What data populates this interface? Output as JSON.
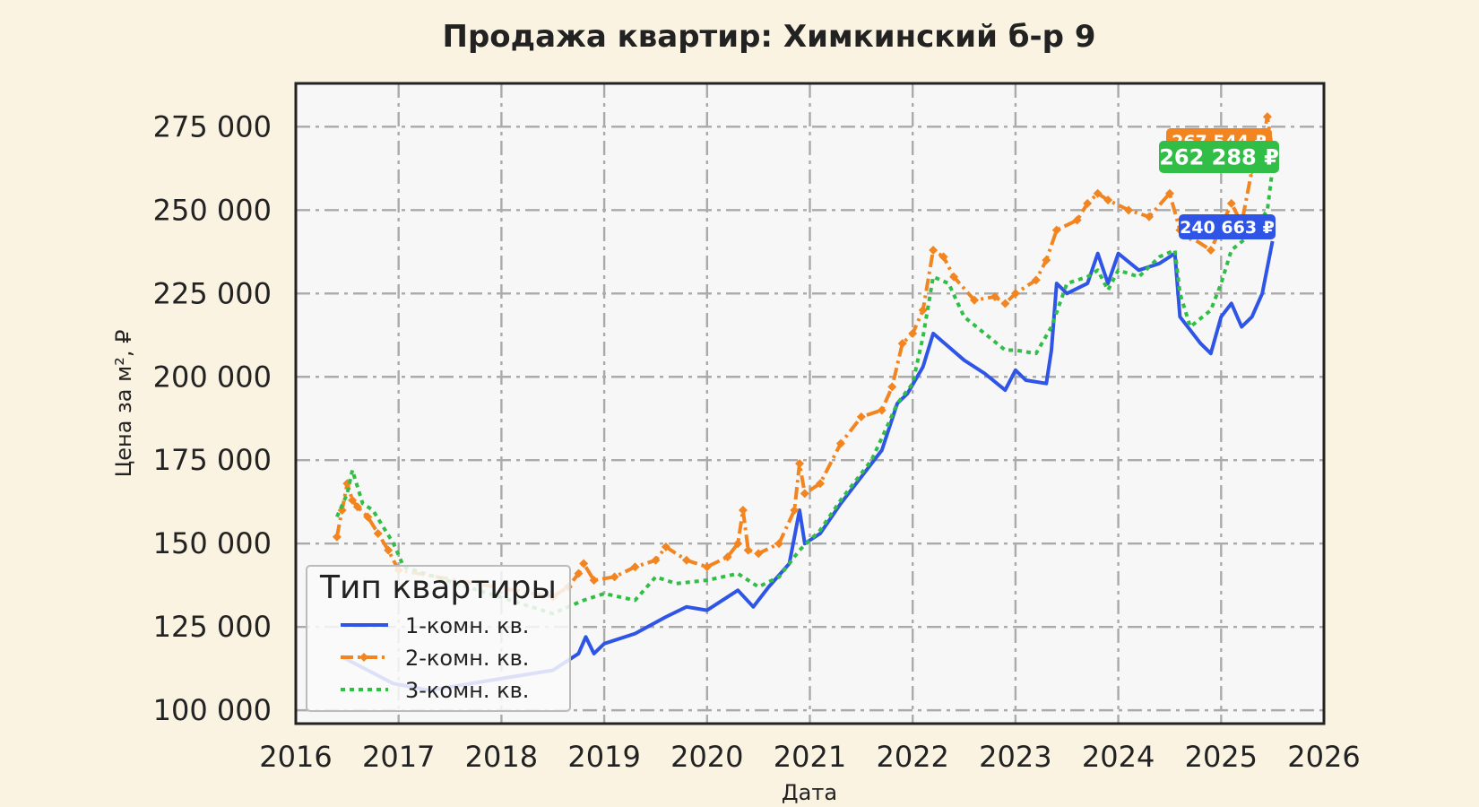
{
  "chart_data": {
    "type": "line",
    "title": "Продажа квартир: Химкинский б-р 9",
    "xlabel": "Дата",
    "ylabel": "Цена за м², ₽",
    "xlim": [
      2016,
      2026
    ],
    "ylim": [
      96000,
      288000
    ],
    "x_ticks": [
      "2016",
      "2017",
      "2018",
      "2019",
      "2020",
      "2021",
      "2022",
      "2023",
      "2024",
      "2025",
      "2026"
    ],
    "y_ticks": [
      "100 000",
      "125 000",
      "150 000",
      "175 000",
      "200 000",
      "225 000",
      "250 000",
      "275 000"
    ],
    "y_tick_values": [
      100000,
      125000,
      150000,
      175000,
      200000,
      225000,
      250000,
      275000
    ],
    "grid": true,
    "legend": {
      "title": "Тип квартиры",
      "placement": "bottom-left"
    },
    "series": [
      {
        "name": "1-комн. кв.",
        "color": "#2f55e6",
        "style": "solid",
        "end_label": "240 663 ₽",
        "x": [
          2016.45,
          2016.7,
          2016.95,
          2017.3,
          2017.7,
          2018.1,
          2018.5,
          2018.65,
          2018.75,
          2018.82,
          2018.9,
          2019.0,
          2019.3,
          2019.6,
          2019.8,
          2020.0,
          2020.3,
          2020.45,
          2020.6,
          2020.8,
          2020.9,
          2020.95,
          2021.1,
          2021.3,
          2021.5,
          2021.7,
          2021.85,
          2021.95,
          2022.1,
          2022.2,
          2022.35,
          2022.5,
          2022.7,
          2022.9,
          2023.0,
          2023.1,
          2023.3,
          2023.35,
          2023.4,
          2023.5,
          2023.7,
          2023.8,
          2023.9,
          2024.0,
          2024.2,
          2024.4,
          2024.55,
          2024.6,
          2024.8,
          2024.9,
          2025.0,
          2025.1,
          2025.2,
          2025.3,
          2025.4,
          2025.5
        ],
        "y": [
          116000,
          112000,
          108000,
          106000,
          108000,
          110000,
          112000,
          115000,
          117000,
          122000,
          117000,
          120000,
          123000,
          128000,
          131000,
          130000,
          136000,
          131000,
          137000,
          144000,
          160000,
          150000,
          153000,
          162000,
          170000,
          178000,
          192000,
          195000,
          203000,
          213000,
          209000,
          205000,
          201000,
          196000,
          202000,
          199000,
          198000,
          208000,
          228000,
          225000,
          228000,
          237000,
          228000,
          237000,
          232000,
          234000,
          237000,
          218000,
          210000,
          207000,
          218000,
          222000,
          215000,
          218000,
          225000,
          240663
        ]
      },
      {
        "name": "2-комн. кв.",
        "color": "#f2851f",
        "style": "dash-dot",
        "end_label": "267 544 ₽",
        "x": [
          2016.4,
          2016.45,
          2016.5,
          2016.55,
          2016.6,
          2016.7,
          2016.8,
          2016.9,
          2017.0,
          2018.5,
          2018.65,
          2018.75,
          2018.8,
          2018.9,
          2019.1,
          2019.3,
          2019.5,
          2019.6,
          2019.8,
          2020.0,
          2020.2,
          2020.3,
          2020.35,
          2020.4,
          2020.5,
          2020.7,
          2020.85,
          2020.9,
          2020.95,
          2021.1,
          2021.3,
          2021.5,
          2021.7,
          2021.8,
          2021.9,
          2022.0,
          2022.1,
          2022.2,
          2022.3,
          2022.4,
          2022.6,
          2022.8,
          2022.9,
          2023.0,
          2023.2,
          2023.3,
          2023.4,
          2023.6,
          2023.7,
          2023.8,
          2023.9,
          2024.1,
          2024.3,
          2024.5,
          2024.6,
          2024.7,
          2024.9,
          2025.0,
          2025.1,
          2025.2,
          2025.3,
          2025.4,
          2025.45,
          2025.5
        ],
        "y": [
          152000,
          160000,
          168000,
          163000,
          161000,
          158000,
          153000,
          148000,
          142000,
          134000,
          137000,
          141000,
          144000,
          139000,
          140000,
          143000,
          145000,
          149000,
          145000,
          143000,
          146000,
          150000,
          160000,
          148000,
          147000,
          150000,
          160000,
          174000,
          165000,
          168000,
          180000,
          188000,
          190000,
          197000,
          210000,
          213000,
          220000,
          238000,
          236000,
          230000,
          223000,
          224000,
          222000,
          225000,
          229000,
          235000,
          244000,
          247000,
          252000,
          255000,
          253000,
          250000,
          248000,
          255000,
          244000,
          242000,
          238000,
          245000,
          252000,
          246000,
          262000,
          270000,
          278000,
          267544
        ]
      },
      {
        "name": "3-комн. кв.",
        "color": "#31be47",
        "style": "dotted",
        "end_label": "262 288 ₽",
        "x": [
          2016.4,
          2016.5,
          2016.55,
          2016.65,
          2016.75,
          2016.85,
          2016.95,
          2017.05,
          2018.5,
          2018.65,
          2018.8,
          2019.0,
          2019.3,
          2019.5,
          2019.7,
          2020.0,
          2020.3,
          2020.5,
          2020.7,
          2020.9,
          2021.1,
          2021.3,
          2021.6,
          2021.75,
          2021.85,
          2022.0,
          2022.1,
          2022.2,
          2022.35,
          2022.5,
          2022.7,
          2022.9,
          2023.0,
          2023.2,
          2023.35,
          2023.5,
          2023.7,
          2023.8,
          2023.9,
          2024.0,
          2024.2,
          2024.4,
          2024.55,
          2024.6,
          2024.7,
          2024.9,
          2025.0,
          2025.1,
          2025.3,
          2025.45,
          2025.5
        ],
        "y": [
          158000,
          165000,
          172000,
          162000,
          160000,
          155000,
          150000,
          143000,
          129000,
          131000,
          133000,
          135000,
          133000,
          140000,
          138000,
          139000,
          141000,
          137000,
          140000,
          148000,
          154000,
          163000,
          175000,
          185000,
          192000,
          198000,
          212000,
          230000,
          228000,
          218000,
          213000,
          208000,
          208000,
          207000,
          215000,
          228000,
          230000,
          232000,
          226000,
          232000,
          230000,
          236000,
          238000,
          225000,
          215000,
          220000,
          228000,
          238000,
          243000,
          250000,
          262288
        ]
      }
    ]
  }
}
